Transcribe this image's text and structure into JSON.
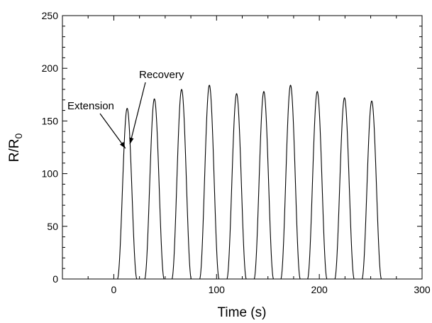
{
  "chart_data": {
    "type": "line",
    "title": "",
    "xlabel": "Time (s)",
    "ylabel": "R/R",
    "ylabel_subscript": "0",
    "xlim": [
      -50,
      300
    ],
    "ylim": [
      0,
      250
    ],
    "xticks": [
      0,
      100,
      200,
      300
    ],
    "yticks": [
      0,
      50,
      100,
      150,
      200,
      250
    ],
    "grid": false,
    "legend": "none",
    "line_color": "#000000",
    "peaks": [
      {
        "x": 13,
        "y": 162
      },
      {
        "x": 39.5,
        "y": 171
      },
      {
        "x": 66,
        "y": 180
      },
      {
        "x": 93,
        "y": 184
      },
      {
        "x": 119.5,
        "y": 176
      },
      {
        "x": 146,
        "y": 178
      },
      {
        "x": 172,
        "y": 184
      },
      {
        "x": 198,
        "y": 178
      },
      {
        "x": 224.5,
        "y": 172
      },
      {
        "x": 251,
        "y": 169
      }
    ],
    "half_width_s": 9.5,
    "baseline_y": 0,
    "baseline_x_range": [
      0,
      265
    ],
    "annotations": [
      {
        "text": "Extension",
        "x": 12,
        "y": 124
      },
      {
        "text": "Recovery",
        "x": 15,
        "y": 128
      }
    ]
  }
}
